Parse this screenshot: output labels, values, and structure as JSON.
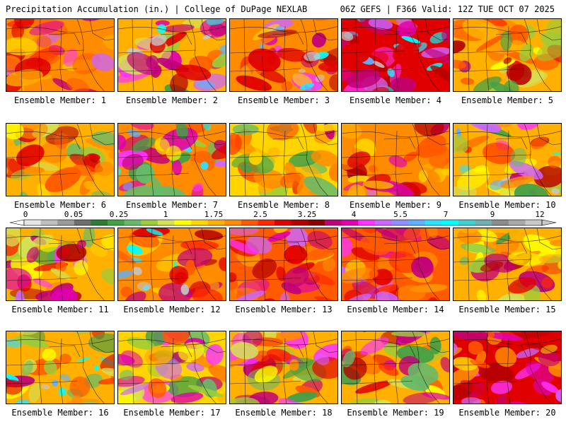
{
  "header": {
    "left": "Precipitation Accumulation (in.) | College of DuPage NEXLAB",
    "right": "06Z GEFS | F366 Valid: 12Z TUE OCT 07 2025"
  },
  "colorbar": {
    "labels": [
      "0",
      "0.05",
      "0.25",
      "1",
      "1.75",
      "2.5",
      "3.25",
      "4",
      "5.5",
      "7",
      "9",
      "12"
    ],
    "colors": [
      "#e6e6e6",
      "#bfbfbf",
      "#9a9a9a",
      "#6e6e6e",
      "#2e7d32",
      "#43a047",
      "#66bb6a",
      "#9ccc3a",
      "#d4e157",
      "#ffff00",
      "#ffd400",
      "#ffb000",
      "#ff8c00",
      "#ff5a00",
      "#ff2a00",
      "#e00000",
      "#b40000",
      "#8c0000",
      "#c0007a",
      "#e000b0",
      "#ff33ff",
      "#cc66ff",
      "#8f8fff",
      "#5fb0ff",
      "#30e0ff",
      "#00ffff",
      "#40d0d0",
      "#70b0b0",
      "#8c8c8c",
      "#a8a8a8",
      "#c8c8c8"
    ]
  },
  "members": [
    {
      "label": "Ensemble Member: 1"
    },
    {
      "label": "Ensemble Member: 2"
    },
    {
      "label": "Ensemble Member: 3"
    },
    {
      "label": "Ensemble Member: 4"
    },
    {
      "label": "Ensemble Member: 5"
    },
    {
      "label": "Ensemble Member: 6"
    },
    {
      "label": "Ensemble Member: 7"
    },
    {
      "label": "Ensemble Member: 8"
    },
    {
      "label": "Ensemble Member: 9"
    },
    {
      "label": "Ensemble Member: 10"
    },
    {
      "label": "Ensemble Member: 11"
    },
    {
      "label": "Ensemble Member: 12"
    },
    {
      "label": "Ensemble Member: 13"
    },
    {
      "label": "Ensemble Member: 14"
    },
    {
      "label": "Ensemble Member: 15"
    },
    {
      "label": "Ensemble Member: 16"
    },
    {
      "label": "Ensemble Member: 17"
    },
    {
      "label": "Ensemble Member: 18"
    },
    {
      "label": "Ensemble Member: 19"
    },
    {
      "label": "Ensemble Member: 20"
    }
  ]
}
